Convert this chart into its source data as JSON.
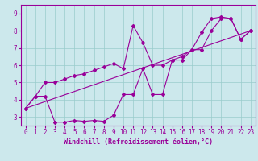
{
  "xlabel": "Windchill (Refroidissement éolien,°C)",
  "background_color": "#cce8ec",
  "line_color": "#990099",
  "xlim": [
    -0.5,
    23.5
  ],
  "ylim": [
    2.5,
    9.5
  ],
  "yticks": [
    3,
    4,
    5,
    6,
    7,
    8,
    9
  ],
  "xticks": [
    0,
    1,
    2,
    3,
    4,
    5,
    6,
    7,
    8,
    9,
    10,
    11,
    12,
    13,
    14,
    15,
    16,
    17,
    18,
    19,
    20,
    21,
    22,
    23
  ],
  "series1_x": [
    0,
    1,
    2,
    3,
    4,
    5,
    6,
    7,
    8,
    9,
    10,
    11,
    12,
    13,
    14,
    15,
    16,
    17,
    18,
    19,
    20,
    21,
    22,
    23
  ],
  "series1_y": [
    3.5,
    4.2,
    5.0,
    5.0,
    5.2,
    5.4,
    5.5,
    5.7,
    5.9,
    6.1,
    5.8,
    8.3,
    7.3,
    6.0,
    6.0,
    6.3,
    6.5,
    6.9,
    7.9,
    8.7,
    8.8,
    8.7,
    7.5,
    8.0
  ],
  "series2_x": [
    0,
    1,
    2,
    3,
    4,
    5,
    6,
    7,
    8,
    9,
    10,
    11,
    12,
    13,
    14,
    15,
    16,
    17,
    18,
    19,
    20,
    21,
    22,
    23
  ],
  "series2_y": [
    3.5,
    4.2,
    4.2,
    2.7,
    2.7,
    2.8,
    2.75,
    2.8,
    2.75,
    3.1,
    4.3,
    4.3,
    5.8,
    4.3,
    4.3,
    6.3,
    6.3,
    6.9,
    6.9,
    8.0,
    8.7,
    8.7,
    7.5,
    8.0
  ],
  "series3_x": [
    0,
    23
  ],
  "series3_y": [
    3.5,
    8.0
  ],
  "grid_color": "#99cccc",
  "marker": "D",
  "markersize": 2.0,
  "linewidth": 0.8,
  "tick_fontsize": 5.5,
  "xlabel_fontsize": 6.0
}
